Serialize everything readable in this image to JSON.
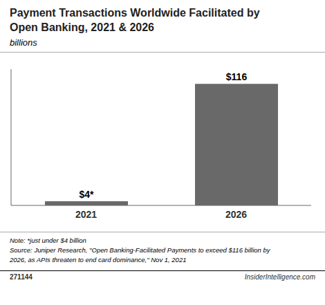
{
  "chart_data": {
    "type": "bar",
    "title": "Payment Transactions Worldwide Facilitated by\nOpen Banking, 2021 & 2026",
    "subtitle": "billions",
    "categories": [
      "2021",
      "2026"
    ],
    "values": [
      4,
      116
    ],
    "value_labels": [
      "$4*",
      "$116"
    ],
    "data_labels": true,
    "color": "#696969",
    "ylim": [
      0,
      130
    ],
    "tick_labels": "x",
    "grid": false,
    "annotations": [
      "Note: *just under $4 billion",
      "Source: Juniper Research, \"Open Banking-Facilitated Payments to exceed $116 billion by",
      "2026, as APIs threaten to end card dominance,\" Nov 1, 2021",
      "271144",
      "InsiderIntelligence.com"
    ]
  }
}
